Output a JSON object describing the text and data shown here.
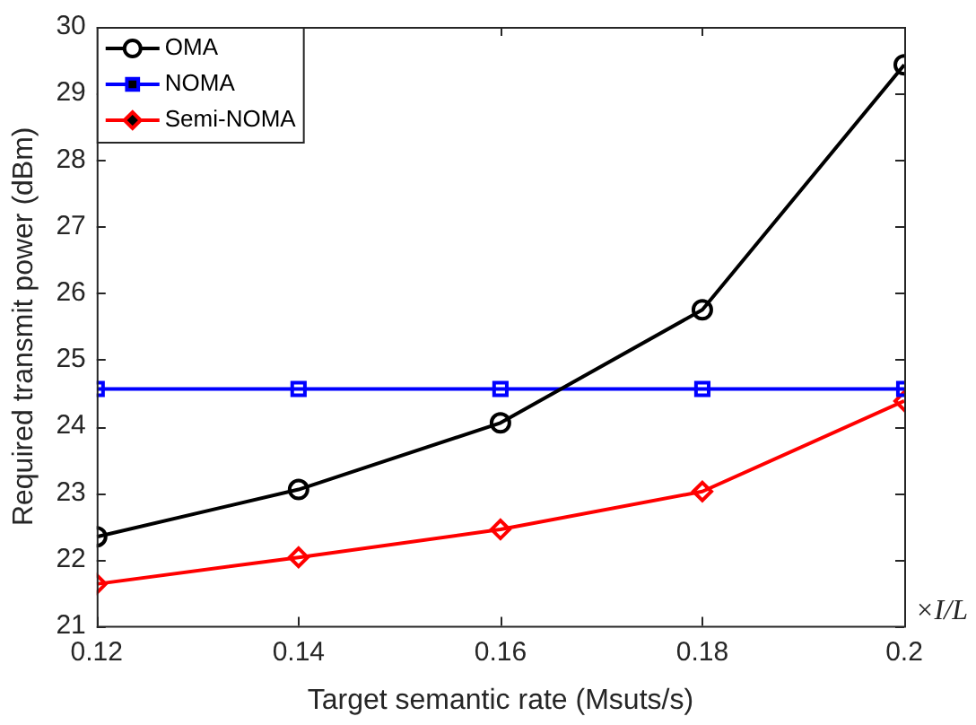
{
  "chart_data": {
    "type": "line",
    "xlabel": "Target semantic rate (Msuts/s)",
    "ylabel": "Required transmit power (dBm)",
    "x": [
      0.12,
      0.14,
      0.16,
      0.18,
      0.2
    ],
    "xlim": [
      0.12,
      0.2
    ],
    "xticks": [
      0.12,
      0.14,
      0.16,
      0.18,
      0.2
    ],
    "ylim": [
      21,
      30
    ],
    "yticks": [
      21,
      22,
      23,
      24,
      25,
      26,
      27,
      28,
      29,
      30
    ],
    "grid": false,
    "legend": "top left",
    "line_style": "solid",
    "annotations": [
      "×I/L"
    ],
    "series": [
      {
        "name": "OMA",
        "color": "#000000",
        "marker": "circle",
        "values": [
          22.34,
          23.05,
          24.05,
          25.75,
          29.43
        ]
      },
      {
        "name": "NOMA",
        "color": "#0000ff",
        "marker": "square",
        "values": [
          24.56,
          24.56,
          24.56,
          24.56,
          24.56
        ]
      },
      {
        "name": "Semi-NOMA",
        "color": "#ff0000",
        "marker": "diamond",
        "values": [
          21.63,
          22.03,
          22.45,
          23.02,
          24.38
        ]
      }
    ]
  }
}
